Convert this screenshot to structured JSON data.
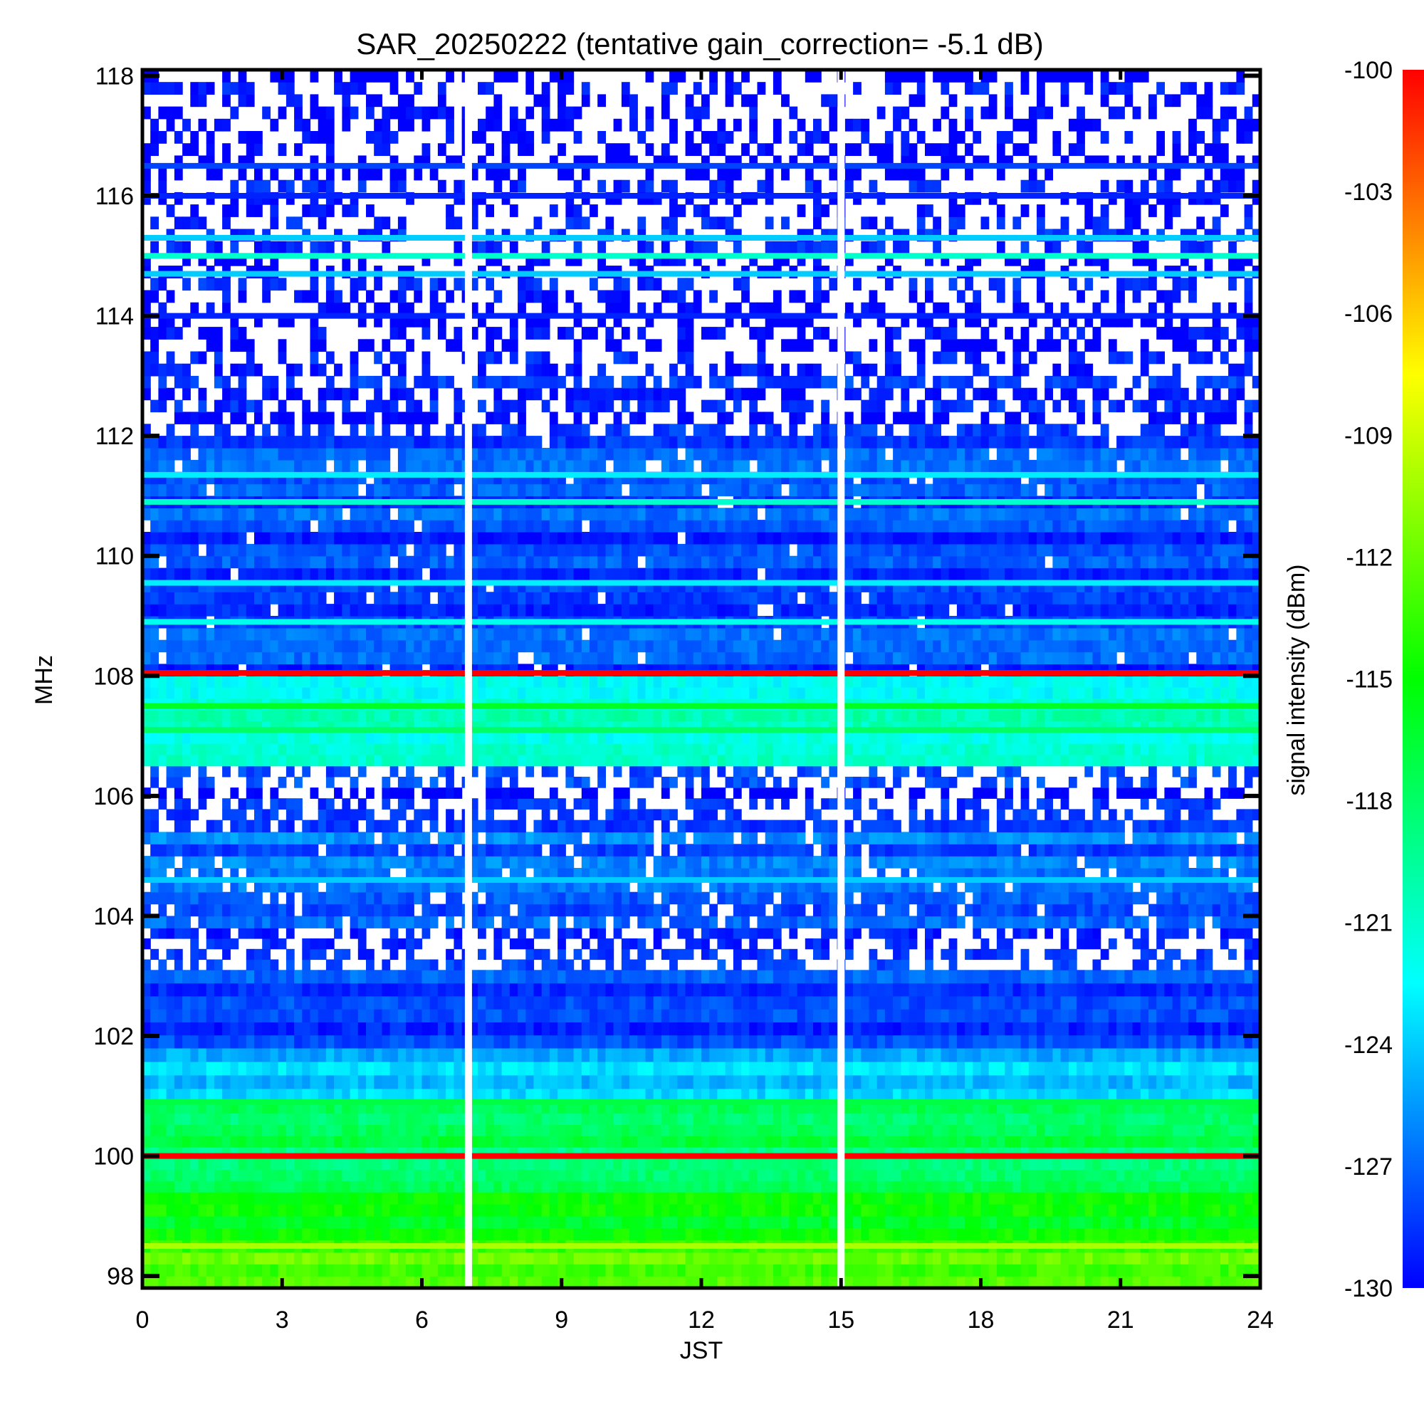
{
  "chart_data": {
    "type": "heatmap",
    "title": "SAR_20250222 (tentative gain_correction= -5.1 dB)",
    "xlabel": "JST",
    "ylabel": "MHz",
    "colorbar_label": "signal intensity (dBm)",
    "xlim": [
      0,
      24
    ],
    "ylim": [
      97.8,
      118.1
    ],
    "x_ticks": [
      0,
      3,
      6,
      9,
      12,
      15,
      18,
      21,
      24
    ],
    "x_tick_labels": [
      "0",
      "3",
      "6",
      "9",
      "12",
      "15",
      "18",
      "21",
      "24"
    ],
    "y_ticks": [
      98,
      100,
      102,
      104,
      106,
      108,
      110,
      112,
      114,
      116,
      118
    ],
    "y_tick_labels": [
      "98",
      "100",
      "102",
      "104",
      "106",
      "108",
      "110",
      "112",
      "114",
      "116",
      "118"
    ],
    "color_range": [
      -130,
      -100
    ],
    "colorbar_ticks": [
      -100,
      -103,
      -106,
      -109,
      -112,
      -115,
      -118,
      -121,
      -124,
      -127,
      -130
    ],
    "colorbar_tick_labels": [
      "-100",
      "-103",
      "-106",
      "-109",
      "-112",
      "-115",
      "-118",
      "-121",
      "-124",
      "-127",
      "-130"
    ],
    "colorscale": [
      "#0000ff",
      "#00ffff",
      "#00ff00",
      "#ffff00",
      "#ff0000"
    ],
    "data_gaps_jst": [
      7.0,
      15.0
    ],
    "frequency_bands": [
      {
        "from": 97.8,
        "to": 98.6,
        "dbm": -113,
        "density": 1.0
      },
      {
        "from": 98.6,
        "to": 99.4,
        "dbm": -116,
        "density": 1.0
      },
      {
        "from": 99.4,
        "to": 100.9,
        "dbm": -118,
        "density": 1.0
      },
      {
        "from": 100.9,
        "to": 101.8,
        "dbm": -124,
        "density": 1.0
      },
      {
        "from": 101.8,
        "to": 103.1,
        "dbm": -128,
        "density": 1.0
      },
      {
        "from": 103.1,
        "to": 103.8,
        "dbm": -129,
        "density": 0.55
      },
      {
        "from": 103.8,
        "to": 105.6,
        "dbm": -127,
        "density": 0.9
      },
      {
        "from": 105.6,
        "to": 106.5,
        "dbm": -129,
        "density": 0.5
      },
      {
        "from": 106.5,
        "to": 108.0,
        "dbm": -121,
        "density": 1.0
      },
      {
        "from": 108.0,
        "to": 112.0,
        "dbm": -128,
        "density": 0.97
      },
      {
        "from": 112.0,
        "to": 113.0,
        "dbm": -129,
        "density": 0.6
      },
      {
        "from": 113.0,
        "to": 118.1,
        "dbm": -130,
        "density": 0.42
      }
    ],
    "strong_lines": [
      {
        "freq": 100.0,
        "dbm": -100
      },
      {
        "freq": 108.05,
        "dbm": -100
      },
      {
        "freq": 98.5,
        "dbm": -110
      },
      {
        "freq": 100.9,
        "dbm": -117
      },
      {
        "freq": 107.5,
        "dbm": -116
      },
      {
        "freq": 107.1,
        "dbm": -118
      },
      {
        "freq": 110.9,
        "dbm": -121
      },
      {
        "freq": 111.35,
        "dbm": -123
      },
      {
        "freq": 109.55,
        "dbm": -123
      },
      {
        "freq": 108.9,
        "dbm": -122
      },
      {
        "freq": 115.3,
        "dbm": -124
      },
      {
        "freq": 114.7,
        "dbm": -124
      },
      {
        "freq": 115.0,
        "dbm": -121
      },
      {
        "freq": 104.6,
        "dbm": -124
      },
      {
        "freq": 116.5,
        "dbm": -128
      },
      {
        "freq": 116.0,
        "dbm": -129
      },
      {
        "freq": 114.0,
        "dbm": -129
      }
    ]
  }
}
